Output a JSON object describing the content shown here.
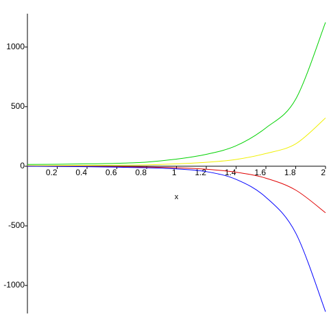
{
  "chart_data": {
    "type": "line",
    "xlabel": "x",
    "x": [
      0,
      0.2,
      0.4,
      0.6,
      0.8,
      1.0,
      1.2,
      1.4,
      1.6,
      1.8,
      2.0
    ],
    "series": [
      {
        "color": "#00d200",
        "values": [
          15,
          17,
          20,
          25,
          35,
          60,
          100,
          172,
          322,
          563,
          1207
        ]
      },
      {
        "color": "#f0f000",
        "values": [
          5,
          6,
          7,
          9,
          12,
          20,
          33,
          57,
          107,
          188,
          405
        ]
      },
      {
        "color": "#e00000",
        "values": [
          0,
          -1,
          -2,
          -4,
          -7,
          -13,
          -25,
          -50,
          -100,
          -200,
          -390
        ]
      },
      {
        "color": "#0000ff",
        "values": [
          0,
          -2,
          -4,
          -8,
          -13,
          -22,
          -45,
          -110,
          -260,
          -560,
          -1220
        ]
      }
    ],
    "xlim": [
      0,
      2
    ],
    "xticks": [
      0.2,
      0.4,
      0.6,
      0.8,
      1,
      1.2,
      1.4,
      1.6,
      1.8,
      2
    ],
    "ylim": [
      -1235,
      1280
    ],
    "yticks": [
      -1000,
      -500,
      0,
      500,
      1000
    ]
  }
}
